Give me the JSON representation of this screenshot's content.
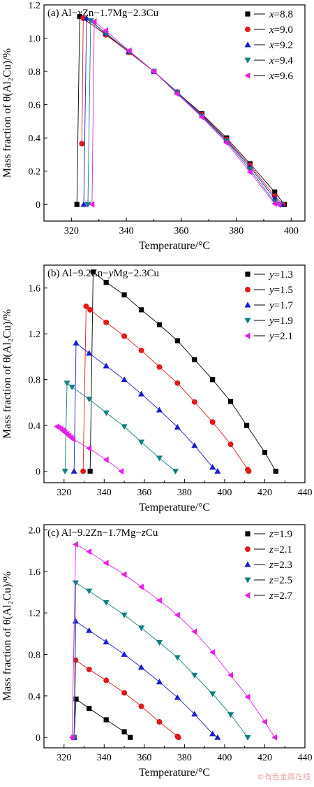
{
  "colors": {
    "black": "#000000",
    "red": "#e0191a",
    "blue": "#1c1ccf",
    "teal": "#0f7f7f",
    "magenta": "#e61fe6"
  },
  "watermark": "©有色金属在线",
  "chart_data": [
    {
      "panel": "(a)",
      "title_prefix": "Al−",
      "title_var": "x",
      "title_suffix": "Zn−1.7Mg−2.3Cu",
      "type": "line",
      "xlabel": "Temperature/°C",
      "ylabel": "Mass fraction of θ(Al₂Cu)/%",
      "xlim": [
        310,
        405
      ],
      "ylim": [
        -0.1,
        1.2
      ],
      "xticks": [
        "320",
        "340",
        "360",
        "380",
        "400"
      ],
      "xtick_values": [
        320,
        340,
        360,
        380,
        400
      ],
      "yticks": [
        "0",
        "0.2",
        "0.4",
        "0.6",
        "0.8",
        "1.0",
        "1.2"
      ],
      "ytick_values": [
        0,
        0.2,
        0.4,
        0.6,
        0.8,
        1.0,
        1.2
      ],
      "legend_position": "top-right",
      "series": [
        {
          "name": "x=8.8",
          "var": "x",
          "val": "=8.8",
          "color": "#000000",
          "marker": "square",
          "x": [
            322,
            323,
            332.5,
            341,
            350,
            358.5,
            367.5,
            376.5,
            385,
            394,
            397.5
          ],
          "y": [
            0,
            1.13,
            1.025,
            0.915,
            0.8,
            0.675,
            0.545,
            0.4,
            0.245,
            0.075,
            0
          ]
        },
        {
          "name": "x=9.0",
          "var": "x",
          "val": "=9.0",
          "color": "#e0191a",
          "marker": "circle",
          "x": [
            323.8,
            324.3,
            332.5,
            341,
            350,
            358.5,
            367.5,
            376.5,
            385,
            394,
            397
          ],
          "y": [
            0.365,
            1.12,
            1.02,
            0.915,
            0.8,
            0.675,
            0.54,
            0.39,
            0.235,
            0.05,
            0
          ]
        },
        {
          "name": "x=9.2",
          "var": "x",
          "val": "=9.2",
          "color": "#1c1ccf",
          "marker": "triangle-up",
          "x": [
            324.5,
            325.5,
            332.5,
            341,
            350,
            358.5,
            367.5,
            376.5,
            385,
            394,
            396.5
          ],
          "y": [
            0,
            1.12,
            1.03,
            0.92,
            0.8,
            0.675,
            0.535,
            0.385,
            0.225,
            0.035,
            0
          ]
        },
        {
          "name": "x=9.4",
          "var": "x",
          "val": "=9.4",
          "color": "#0f7f7f",
          "marker": "triangle-down",
          "x": [
            326,
            327,
            332.5,
            341,
            350,
            358.5,
            367.5,
            376.5,
            385,
            394,
            396
          ],
          "y": [
            0,
            1.105,
            1.03,
            0.92,
            0.8,
            0.67,
            0.53,
            0.38,
            0.21,
            0.015,
            0
          ]
        },
        {
          "name": "x=9.6",
          "var": "x",
          "val": "=9.6",
          "color": "#e61fe6",
          "marker": "triangle-left",
          "x": [
            327.5,
            328.3,
            332.5,
            341,
            350,
            358.5,
            367.5,
            376.5,
            385,
            394,
            395.5
          ],
          "y": [
            0,
            1.1,
            1.045,
            0.925,
            0.8,
            0.665,
            0.525,
            0.37,
            0.195,
            0.005,
            0
          ]
        }
      ]
    },
    {
      "panel": "(b)",
      "title_prefix": "Al−9.2Zn−",
      "title_var": "y",
      "title_suffix": "Mg−2.3Cu",
      "type": "line",
      "xlabel": "Temperature/°C",
      "ylabel": "Mass fraction of θ(Al₂Cu)/%",
      "xlim": [
        310,
        440
      ],
      "ylim": [
        -0.1,
        1.8
      ],
      "xticks": [
        "320",
        "340",
        "360",
        "380",
        "400",
        "420",
        "440"
      ],
      "xtick_values": [
        320,
        340,
        360,
        380,
        400,
        420,
        440
      ],
      "yticks": [
        "0",
        "0.4",
        "0.8",
        "1.2",
        "1.6"
      ],
      "ytick_values": [
        0,
        0.4,
        0.8,
        1.2,
        1.6
      ],
      "legend_position": "top-right",
      "series": [
        {
          "name": "y=1.3",
          "var": "y",
          "val": "=1.3",
          "color": "#000000",
          "marker": "square",
          "x": [
            333,
            334.5,
            341,
            350,
            358.5,
            367.5,
            376.5,
            385,
            394,
            403,
            411,
            420,
            425.5
          ],
          "y": [
            0,
            1.74,
            1.65,
            1.54,
            1.41,
            1.28,
            1.14,
            0.975,
            0.8,
            0.61,
            0.4,
            0.165,
            0
          ]
        },
        {
          "name": "y=1.5",
          "var": "y",
          "val": "=1.5",
          "color": "#e0191a",
          "marker": "circle",
          "x": [
            329.5,
            331,
            333,
            341,
            350,
            358.5,
            367.5,
            376.5,
            385,
            394,
            403,
            411.5,
            412
          ],
          "y": [
            0,
            1.44,
            1.41,
            1.3,
            1.18,
            1.055,
            0.91,
            0.77,
            0.605,
            0.43,
            0.235,
            0.015,
            0
          ]
        },
        {
          "name": "y=1.7",
          "var": "y",
          "val": "=1.7",
          "color": "#1c1ccf",
          "marker": "triangle-up",
          "x": [
            325,
            326,
            332.5,
            341,
            350,
            358.5,
            367.5,
            376.5,
            385,
            394,
            396.5
          ],
          "y": [
            0,
            1.12,
            1.03,
            0.92,
            0.8,
            0.675,
            0.535,
            0.385,
            0.225,
            0.035,
            0
          ]
        },
        {
          "name": "y=1.9",
          "var": "y",
          "val": "=1.9",
          "color": "#0f7f7f",
          "marker": "triangle-down",
          "x": [
            320.5,
            321.5,
            324,
            332.5,
            341,
            350,
            358.5,
            367.5,
            375.5
          ],
          "y": [
            0,
            0.77,
            0.735,
            0.63,
            0.51,
            0.39,
            0.255,
            0.115,
            0
          ]
        },
        {
          "name": "y=2.1",
          "var": "y",
          "val": "=2.1",
          "color": "#e61fe6",
          "marker": "triangle-left",
          "x": [
            316.5,
            317.5,
            318.5,
            319.5,
            320.5,
            321.5,
            322.5,
            323.5,
            324.5,
            332.5,
            341,
            348.5
          ],
          "y": [
            0.39,
            0.38,
            0.37,
            0.355,
            0.34,
            0.325,
            0.31,
            0.295,
            0.28,
            0.2,
            0.1,
            0
          ]
        }
      ]
    },
    {
      "panel": "(c)",
      "title_prefix": "Al−9.2Zn−1.7Mg−",
      "title_var": "z",
      "title_suffix": "Cu",
      "type": "line",
      "xlabel": "Temperature/°C",
      "ylabel": "Mass fraction of θ(Al₂Cu)/%",
      "xlim": [
        310,
        440
      ],
      "ylim": [
        -0.1,
        2.05
      ],
      "xticks": [
        "320",
        "340",
        "360",
        "380",
        "400",
        "420",
        "440"
      ],
      "xtick_values": [
        320,
        340,
        360,
        380,
        400,
        420,
        440
      ],
      "yticks": [
        "0",
        "0.4",
        "0.8",
        "1.2",
        "1.6",
        "2.0"
      ],
      "ytick_values": [
        0,
        0.4,
        0.8,
        1.2,
        1.6,
        2.0
      ],
      "legend_position": "top-right",
      "series": [
        {
          "name": "z=1.9",
          "var": "z",
          "val": "=1.9",
          "color": "#000000",
          "marker": "square",
          "x": [
            325,
            326,
            332.5,
            341,
            350,
            353
          ],
          "y": [
            0,
            0.37,
            0.28,
            0.17,
            0.055,
            0
          ]
        },
        {
          "name": "z=2.1",
          "var": "z",
          "val": "=2.1",
          "color": "#e0191a",
          "marker": "circle",
          "x": [
            325,
            325.8,
            332.5,
            341,
            350,
            358.5,
            367.5,
            376.5,
            377
          ],
          "y": [
            0,
            0.745,
            0.655,
            0.55,
            0.43,
            0.3,
            0.15,
            0.01,
            0
          ]
        },
        {
          "name": "z=2.3",
          "var": "z",
          "val": "=2.3",
          "color": "#1c1ccf",
          "marker": "triangle-up",
          "x": [
            325,
            325.8,
            332.5,
            341,
            350,
            358.5,
            367.5,
            376.5,
            385,
            394,
            396.5
          ],
          "y": [
            0,
            1.12,
            1.03,
            0.92,
            0.8,
            0.675,
            0.535,
            0.385,
            0.225,
            0.035,
            0
          ]
        },
        {
          "name": "z=2.5",
          "var": "z",
          "val": "=2.5",
          "color": "#0f7f7f",
          "marker": "triangle-down",
          "x": [
            325,
            325.8,
            332.5,
            341,
            350,
            358.5,
            367.5,
            376.5,
            385,
            394,
            403,
            411.5
          ],
          "y": [
            0,
            1.49,
            1.41,
            1.3,
            1.18,
            1.055,
            0.915,
            0.77,
            0.6,
            0.42,
            0.22,
            0
          ]
        },
        {
          "name": "z=2.7",
          "var": "z",
          "val": "=2.7",
          "color": "#e61fe6",
          "marker": "triangle-left",
          "x": [
            324,
            325.8,
            332.5,
            341,
            350,
            358.5,
            367.5,
            376.5,
            385,
            394,
            403,
            411.5,
            420,
            425
          ],
          "y": [
            0,
            1.86,
            1.79,
            1.68,
            1.57,
            1.45,
            1.32,
            1.18,
            1.02,
            0.82,
            0.6,
            0.39,
            0.15,
            0
          ]
        }
      ]
    }
  ]
}
